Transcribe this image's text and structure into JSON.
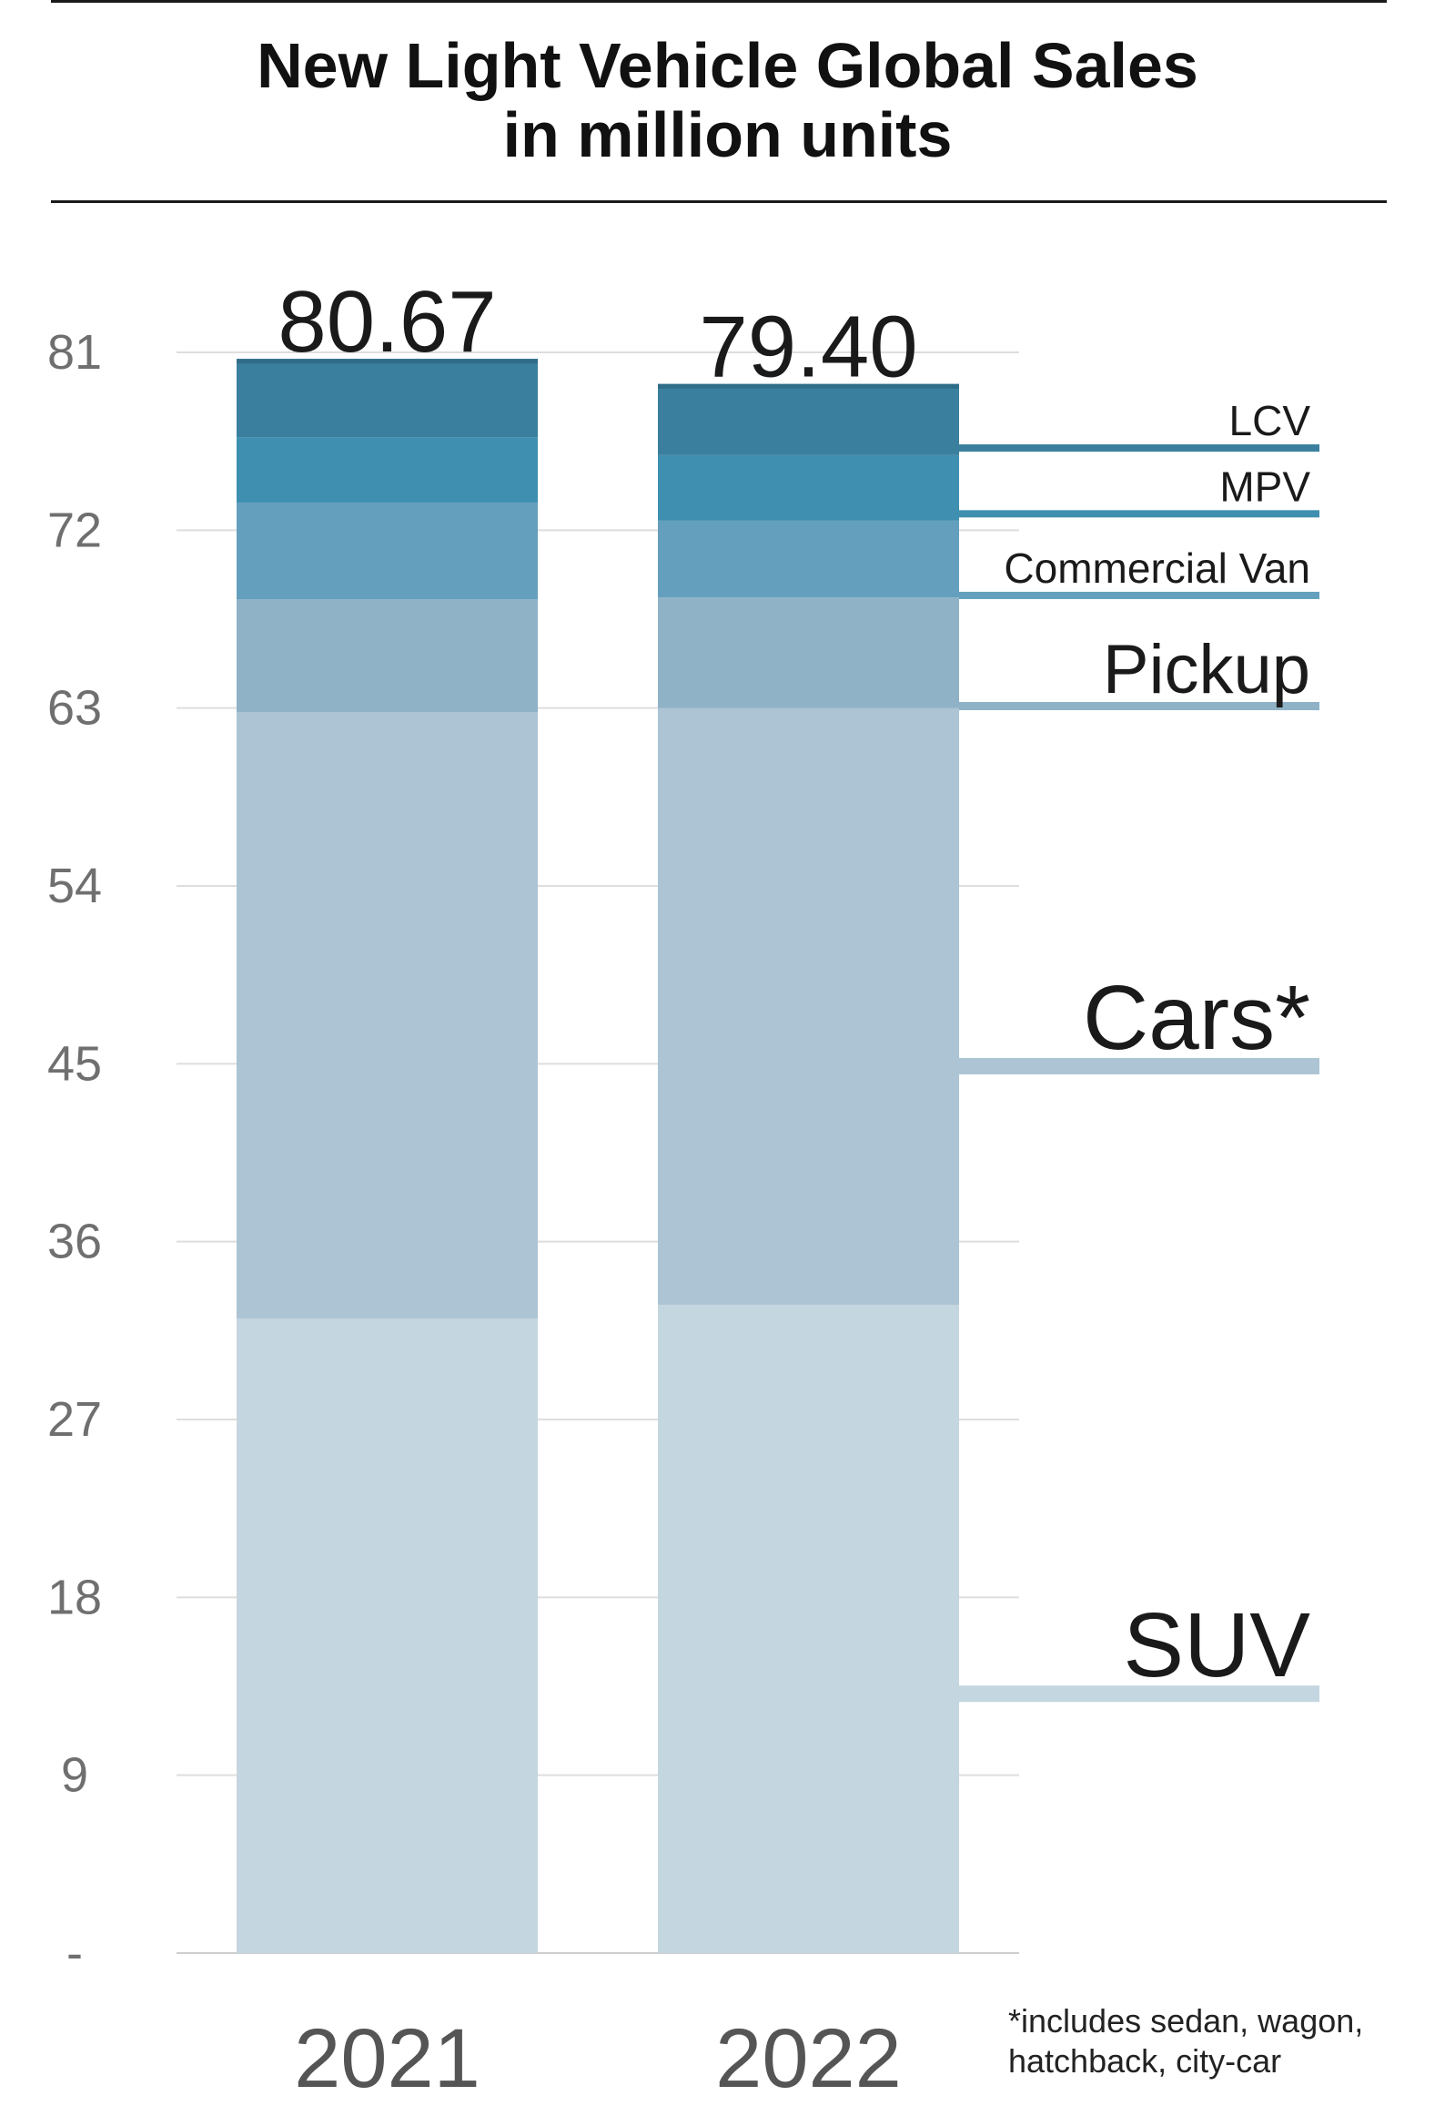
{
  "title_line1": "New Light Vehicle Global Sales",
  "title_line2": "in million units",
  "footnote_line1": "*includes sedan, wagon,",
  "footnote_line2": "hatchback, city-car",
  "colors": {
    "SUV": "#c4d6e0",
    "Cars*": "#acc4d4",
    "Pickup": "#8fb2c7",
    "Commercial Van": "#649fbd",
    "MPV": "#3f8fb0",
    "LCV": "#3a809e",
    "LCV_edge": "#2f6d88"
  },
  "chart_data": {
    "type": "bar",
    "stacked": true,
    "title": "New Light Vehicle Global Sales in million units",
    "categories": [
      "2021",
      "2022"
    ],
    "totals": [
      80.67,
      79.4
    ],
    "ylim": [
      0,
      81
    ],
    "yticks": [
      {
        "value": 81,
        "label": "81"
      },
      {
        "value": 72,
        "label": "72"
      },
      {
        "value": 63,
        "label": "63"
      },
      {
        "value": 54,
        "label": "54"
      },
      {
        "value": 45,
        "label": "45"
      },
      {
        "value": 36,
        "label": "36"
      },
      {
        "value": 27,
        "label": "27"
      },
      {
        "value": 18,
        "label": "18"
      },
      {
        "value": 9,
        "label": "9"
      },
      {
        "value": 0,
        "label": "-"
      }
    ],
    "grid": true,
    "legend": "right, inline labels",
    "series": [
      {
        "name": "SUV",
        "values": [
          32.1,
          32.8
        ]
      },
      {
        "name": "Cars*",
        "values": [
          30.7,
          30.2
        ]
      },
      {
        "name": "Pickup",
        "values": [
          5.7,
          5.6
        ]
      },
      {
        "name": "Commercial Van",
        "values": [
          4.9,
          3.9
        ]
      },
      {
        "name": "MPV",
        "values": [
          3.3,
          3.3
        ]
      },
      {
        "name": "LCV",
        "values": [
          3.97,
          3.6
        ]
      }
    ]
  }
}
